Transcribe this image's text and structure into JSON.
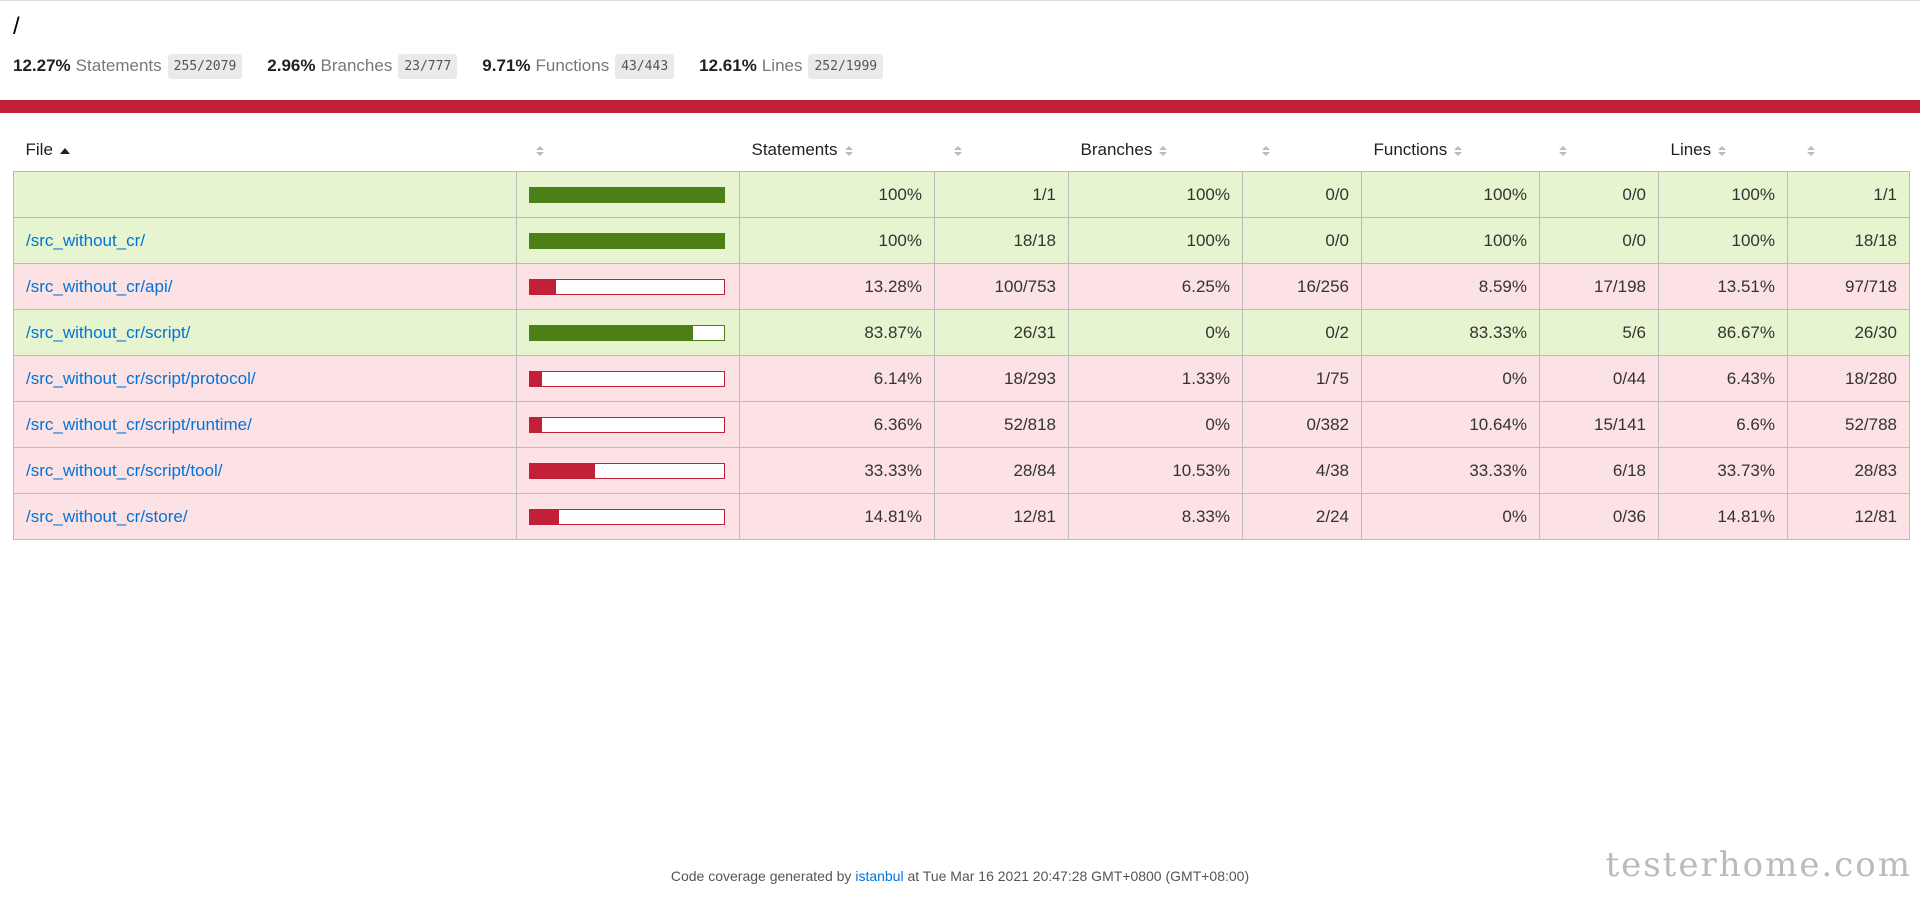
{
  "header": {
    "title": "/"
  },
  "summary": [
    {
      "pct": "12.27%",
      "label": "Statements",
      "fraction": "255/2079"
    },
    {
      "pct": "2.96%",
      "label": "Branches",
      "fraction": "23/777"
    },
    {
      "pct": "9.71%",
      "label": "Functions",
      "fraction": "43/443"
    },
    {
      "pct": "12.61%",
      "label": "Lines",
      "fraction": "252/1999"
    }
  ],
  "table": {
    "headers": {
      "file": "File",
      "statements": "Statements",
      "branches": "Branches",
      "functions": "Functions",
      "lines": "Lines"
    },
    "rows": [
      {
        "prefix": "",
        "path": "",
        "level": "high",
        "bar": 100,
        "st_pct": "100%",
        "st_abs": "1/1",
        "br_pct": "100%",
        "br_abs": "0/0",
        "fn_pct": "100%",
        "fn_abs": "0/0",
        "ln_pct": "100%",
        "ln_abs": "1/1"
      },
      {
        "prefix": "",
        "path": "/src_without_cr/",
        "level": "high",
        "bar": 100,
        "st_pct": "100%",
        "st_abs": "18/18",
        "br_pct": "100%",
        "br_abs": "0/0",
        "fn_pct": "100%",
        "fn_abs": "0/0",
        "ln_pct": "100%",
        "ln_abs": "18/18"
      },
      {
        "prefix": "",
        "path": "/src_without_cr/api/",
        "level": "low",
        "bar": 13.28,
        "st_pct": "13.28%",
        "st_abs": "100/753",
        "br_pct": "6.25%",
        "br_abs": "16/256",
        "fn_pct": "8.59%",
        "fn_abs": "17/198",
        "ln_pct": "13.51%",
        "ln_abs": "97/718"
      },
      {
        "prefix": "",
        "path": "/src_without_cr/script/",
        "level": "high",
        "bar": 83.87,
        "st_pct": "83.87%",
        "st_abs": "26/31",
        "br_pct": "0%",
        "br_abs": "0/2",
        "fn_pct": "83.33%",
        "fn_abs": "5/6",
        "ln_pct": "86.67%",
        "ln_abs": "26/30"
      },
      {
        "prefix": "",
        "path": "/src_without_cr/script/protocol/",
        "level": "low",
        "bar": 6.14,
        "st_pct": "6.14%",
        "st_abs": "18/293",
        "br_pct": "1.33%",
        "br_abs": "1/75",
        "fn_pct": "0%",
        "fn_abs": "0/44",
        "ln_pct": "6.43%",
        "ln_abs": "18/280"
      },
      {
        "prefix": "",
        "path": "/src_without_cr/script/runtime/",
        "level": "low",
        "bar": 6.36,
        "st_pct": "6.36%",
        "st_abs": "52/818",
        "br_pct": "0%",
        "br_abs": "0/382",
        "fn_pct": "10.64%",
        "fn_abs": "15/141",
        "ln_pct": "6.6%",
        "ln_abs": "52/788"
      },
      {
        "prefix": "",
        "path": "/src_without_cr/script/tool/",
        "level": "low",
        "bar": 33.33,
        "st_pct": "33.33%",
        "st_abs": "28/84",
        "br_pct": "10.53%",
        "br_abs": "4/38",
        "fn_pct": "33.33%",
        "fn_abs": "6/18",
        "ln_pct": "33.73%",
        "ln_abs": "28/83"
      },
      {
        "prefix": "",
        "path": "/src_without_cr/store/",
        "level": "low",
        "bar": 14.81,
        "st_pct": "14.81%",
        "st_abs": "12/81",
        "br_pct": "8.33%",
        "br_abs": "2/24",
        "fn_pct": "0%",
        "fn_abs": "0/36",
        "ln_pct": "14.81%",
        "ln_abs": "12/81"
      }
    ]
  },
  "footer": {
    "prefix": "Code coverage generated by",
    "link": "istanbul",
    "suffix": "at Tue Mar 16 2021 20:47:28 GMT+0800 (GMT+08:00)"
  },
  "watermark": "testerhome.com",
  "colors": {
    "high_bg": "#e6f5d0",
    "low_bg": "#fce1e5",
    "high_bar": "#4d7f17",
    "low_bar": "#c21f39",
    "status_bar": "#c21f39",
    "link": "#0074d9"
  }
}
